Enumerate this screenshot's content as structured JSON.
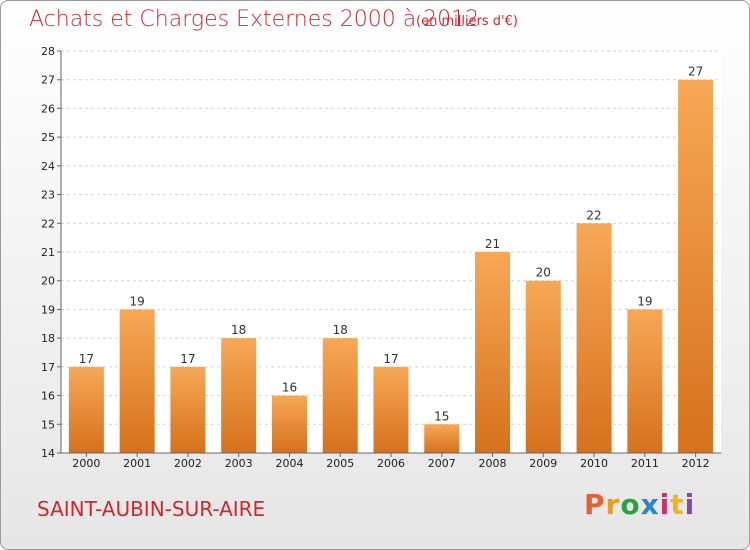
{
  "header": {
    "title": "Achats et Charges Externes 2000 à 2012",
    "subtitle": "(en milliers d'€)"
  },
  "footer": {
    "commune": "SAINT-AUBIN-SUR-AIRE",
    "logo_letters": [
      "P",
      "r",
      "o",
      "x",
      "i",
      "t",
      "i"
    ],
    "logo_colors": [
      "#e8612c",
      "#f19a1c",
      "#2aa33f",
      "#2b86c6",
      "#d22e68",
      "#f0b21d",
      "#8e44ad"
    ]
  },
  "chart_data": {
    "type": "bar",
    "title": "Achats et Charges Externes 2000 à 2012",
    "subtitle": "(en milliers d'€)",
    "categories": [
      "2000",
      "2001",
      "2002",
      "2003",
      "2004",
      "2005",
      "2006",
      "2007",
      "2008",
      "2009",
      "2010",
      "2011",
      "2012"
    ],
    "values": [
      17,
      19,
      17,
      18,
      16,
      18,
      17,
      15,
      21,
      20,
      22,
      19,
      27
    ],
    "ylim": [
      14,
      28
    ],
    "yticks": [
      14,
      15,
      16,
      17,
      18,
      19,
      20,
      21,
      22,
      23,
      24,
      25,
      26,
      27,
      28
    ],
    "grid": true,
    "bar_color": "#f4a04a",
    "bar_color_dark": "#d9731c"
  }
}
